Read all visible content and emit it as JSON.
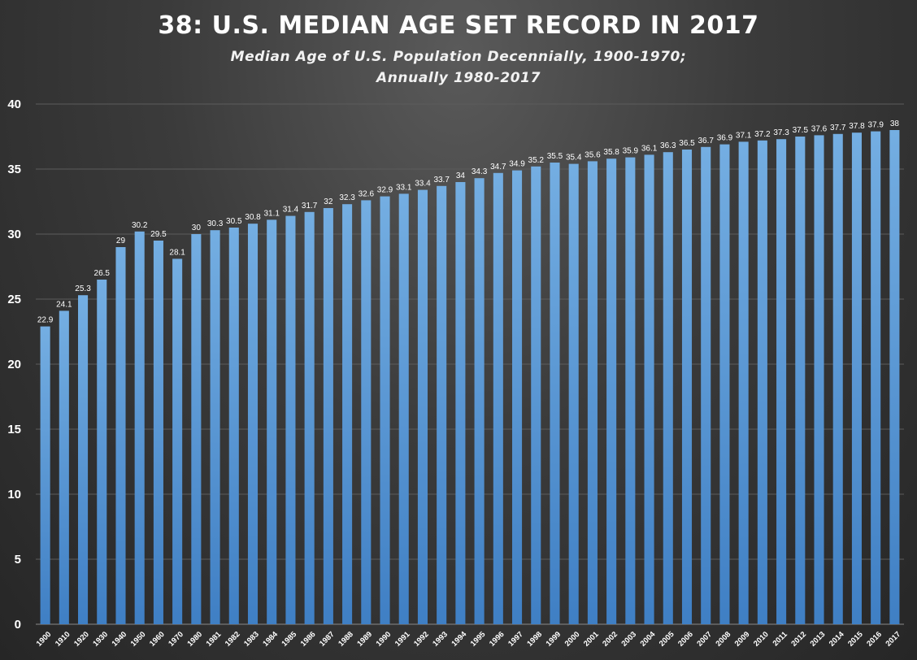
{
  "chart_data": {
    "type": "bar",
    "title": "38: U.S. MEDIAN AGE SET RECORD IN 2017",
    "subtitle_lines": [
      "Median Age of U.S. Population Decennially, 1900-1970;",
      "Annually 1980-2017"
    ],
    "xlabel": "",
    "ylabel": "",
    "ylim": [
      0,
      40
    ],
    "yticks": [
      0,
      5,
      10,
      15,
      20,
      25,
      30,
      35,
      40
    ],
    "grid": true,
    "bar_color": "#5b9bd5",
    "categories": [
      "1900",
      "1910",
      "1920",
      "1930",
      "1940",
      "1950",
      "1960",
      "1970",
      "1980",
      "1981",
      "1982",
      "1983",
      "1984",
      "1985",
      "1986",
      "1987",
      "1988",
      "1989",
      "1990",
      "1991",
      "1992",
      "1993",
      "1994",
      "1995",
      "1996",
      "1997",
      "1998",
      "1999",
      "2000",
      "2001",
      "2002",
      "2003",
      "2004",
      "2005",
      "2006",
      "2007",
      "2008",
      "2009",
      "2010",
      "2011",
      "2012",
      "2013",
      "2014",
      "2015",
      "2016",
      "2017"
    ],
    "values": [
      22.9,
      24.1,
      25.3,
      26.5,
      29,
      30.2,
      29.5,
      28.1,
      30,
      30.3,
      30.5,
      30.8,
      31.1,
      31.4,
      31.7,
      32,
      32.3,
      32.6,
      32.9,
      33.1,
      33.4,
      33.7,
      34,
      34.3,
      34.7,
      34.9,
      35.2,
      35.5,
      35.4,
      35.6,
      35.8,
      35.9,
      36.1,
      36.3,
      36.5,
      36.7,
      36.9,
      37.1,
      37.2,
      37.3,
      37.5,
      37.6,
      37.7,
      37.8,
      37.9,
      38
    ]
  }
}
